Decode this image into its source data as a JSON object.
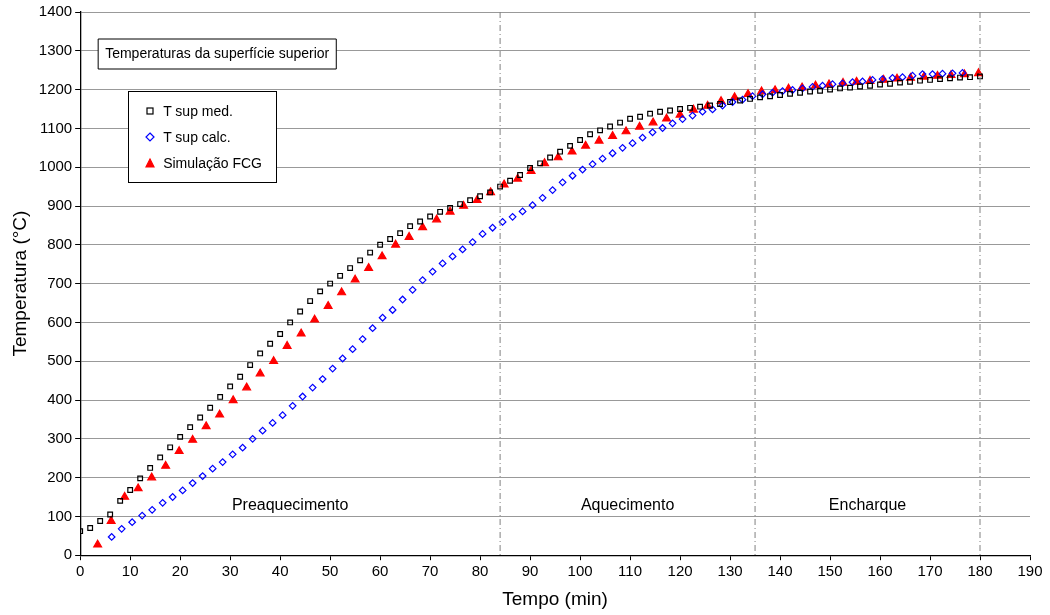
{
  "chart_data": {
    "type": "scatter",
    "title": "Temperaturas da superfície superior",
    "xlabel": "Tempo (min)",
    "ylabel": "Temperatura (°C)",
    "xlim": [
      0,
      190
    ],
    "xticks": [
      0,
      10,
      20,
      30,
      40,
      50,
      60,
      70,
      80,
      90,
      100,
      110,
      120,
      130,
      140,
      150,
      160,
      170,
      180,
      190
    ],
    "ylim": [
      0,
      1400
    ],
    "yticks": [
      0,
      100,
      200,
      300,
      400,
      500,
      600,
      700,
      800,
      900,
      1000,
      1100,
      1200,
      1300,
      1400
    ],
    "grid": "y",
    "legend": "top left",
    "ref_lines": [
      {
        "axis": "x",
        "value": 84,
        "color": "#808080",
        "line_style": "dashed"
      },
      {
        "axis": "x",
        "value": 135,
        "color": "#808080",
        "line_style": "dashed"
      },
      {
        "axis": "x",
        "value": 180,
        "color": "#808080",
        "line_style": "dashed"
      }
    ],
    "annotations": [
      "Preaquecimento",
      "Aquecimento",
      "Encharque"
    ],
    "series": [
      {
        "name": "T sup med.",
        "color": "#000000",
        "marker": "square",
        "x": [
          0,
          2,
          4,
          6,
          8,
          10,
          12,
          14,
          16,
          18,
          20,
          22,
          24,
          26,
          28,
          30,
          32,
          34,
          36,
          38,
          40,
          42,
          44,
          46,
          48,
          50,
          52,
          54,
          56,
          58,
          60,
          62,
          64,
          66,
          68,
          70,
          72,
          74,
          76,
          78,
          80,
          82,
          84,
          86,
          88,
          90,
          92,
          94,
          96,
          98,
          100,
          102,
          104,
          106,
          108,
          110,
          112,
          114,
          116,
          118,
          120,
          122,
          124,
          126,
          128,
          130,
          132,
          134,
          136,
          138,
          140,
          142,
          144,
          146,
          148,
          150,
          152,
          154,
          156,
          158,
          160,
          162,
          164,
          166,
          168,
          170,
          172,
          174,
          176,
          178,
          180
        ],
        "values": [
          62,
          70,
          88,
          105,
          140,
          168,
          198,
          225,
          252,
          278,
          305,
          330,
          355,
          380,
          408,
          435,
          460,
          490,
          520,
          545,
          570,
          600,
          628,
          655,
          680,
          700,
          720,
          740,
          760,
          780,
          800,
          815,
          830,
          848,
          860,
          873,
          885,
          895,
          905,
          915,
          925,
          935,
          950,
          965,
          980,
          998,
          1010,
          1025,
          1040,
          1055,
          1070,
          1085,
          1095,
          1105,
          1115,
          1125,
          1130,
          1138,
          1143,
          1146,
          1150,
          1153,
          1156,
          1159,
          1163,
          1168,
          1172,
          1176,
          1180,
          1183,
          1186,
          1189,
          1192,
          1195,
          1197,
          1200,
          1203,
          1205,
          1208,
          1210,
          1213,
          1215,
          1218,
          1220,
          1223,
          1225,
          1227,
          1229,
          1231,
          1232,
          1234
        ]
      },
      {
        "name": "T sup calc.",
        "color": "#0000ff",
        "marker": "diamond",
        "x": [
          6.3,
          8.3,
          10.4,
          12.4,
          14.4,
          16.5,
          18.5,
          20.5,
          22.5,
          24.5,
          26.5,
          28.5,
          30.5,
          32.5,
          34.5,
          36.5,
          38.5,
          40.5,
          42.5,
          44.5,
          46.5,
          48.5,
          50.5,
          52.5,
          54.5,
          56.5,
          58.5,
          60.5,
          62.5,
          64.5,
          66.5,
          68.5,
          70.5,
          72.5,
          74.5,
          76.5,
          78.5,
          80.5,
          82.5,
          84.5,
          86.5,
          88.5,
          90.5,
          92.5,
          94.5,
          96.5,
          98.5,
          100.5,
          102.5,
          104.5,
          106.5,
          108.5,
          110.5,
          112.5,
          114.5,
          116.5,
          118.5,
          120.5,
          122.5,
          124.5,
          126.5,
          128.5,
          130.5,
          132.5,
          134.5,
          136.5,
          138.5,
          140.5,
          142.5,
          144.5,
          146.5,
          148.5,
          150.5,
          152.5,
          154.5,
          156.5,
          158.5,
          160.5,
          162.5,
          164.5,
          166.5,
          168.5,
          170.5,
          172.5,
          174.5,
          176.5
        ],
        "values": [
          47,
          68,
          85,
          102,
          117,
          135,
          150,
          167,
          186,
          204,
          223,
          240,
          260,
          277,
          300,
          321,
          341,
          361,
          385,
          409,
          432,
          454,
          481,
          507,
          531,
          557,
          585,
          612,
          632,
          659,
          684,
          709,
          731,
          752,
          770,
          788,
          807,
          828,
          844,
          859,
          872,
          886,
          902,
          921,
          941,
          961,
          978,
          994,
          1008,
          1022,
          1036,
          1050,
          1062,
          1076,
          1090,
          1101,
          1113,
          1124,
          1133,
          1143,
          1149,
          1159,
          1168,
          1174,
          1183,
          1188,
          1192,
          1196,
          1199,
          1203,
          1207,
          1210,
          1214,
          1216,
          1219,
          1221,
          1225,
          1227,
          1230,
          1232,
          1236,
          1240,
          1240,
          1241,
          1242,
          1243
        ]
      },
      {
        "name": "Simulação FCG",
        "color": "#ff0000",
        "marker": "triangle",
        "x": [
          3.5,
          6.2,
          8.9,
          11.6,
          14.3,
          17.1,
          19.8,
          22.5,
          25.2,
          27.9,
          30.6,
          33.3,
          36.0,
          38.7,
          41.4,
          44.2,
          46.9,
          49.6,
          52.3,
          55.0,
          57.7,
          60.4,
          63.1,
          65.8,
          68.5,
          71.3,
          74.0,
          76.7,
          79.4,
          82.1,
          84.8,
          87.5,
          90.2,
          92.9,
          95.6,
          98.4,
          101.1,
          103.8,
          106.5,
          109.2,
          111.9,
          114.6,
          117.3,
          120.0,
          122.7,
          125.5,
          128.2,
          130.9,
          133.6,
          136.3,
          139.0,
          141.7,
          144.4,
          147.1,
          149.8,
          152.6,
          155.3,
          158.0,
          160.7,
          163.4,
          166.1,
          168.8,
          171.5,
          174.2,
          176.9,
          179.7
        ],
        "values": [
          27,
          88,
          150,
          172,
          200,
          230,
          268,
          297,
          332,
          362,
          399,
          432,
          468,
          500,
          539,
          571,
          607,
          642,
          677,
          710,
          740,
          770,
          800,
          820,
          845,
          865,
          885,
          900,
          915,
          935,
          955,
          970,
          990,
          1010,
          1025,
          1040,
          1055,
          1068,
          1080,
          1092,
          1104,
          1115,
          1125,
          1135,
          1148,
          1158,
          1170,
          1180,
          1188,
          1195,
          1198,
          1202,
          1205,
          1210,
          1213,
          1217,
          1220,
          1222,
          1225,
          1228,
          1230,
          1233,
          1235,
          1237,
          1239,
          1242
        ]
      }
    ]
  }
}
